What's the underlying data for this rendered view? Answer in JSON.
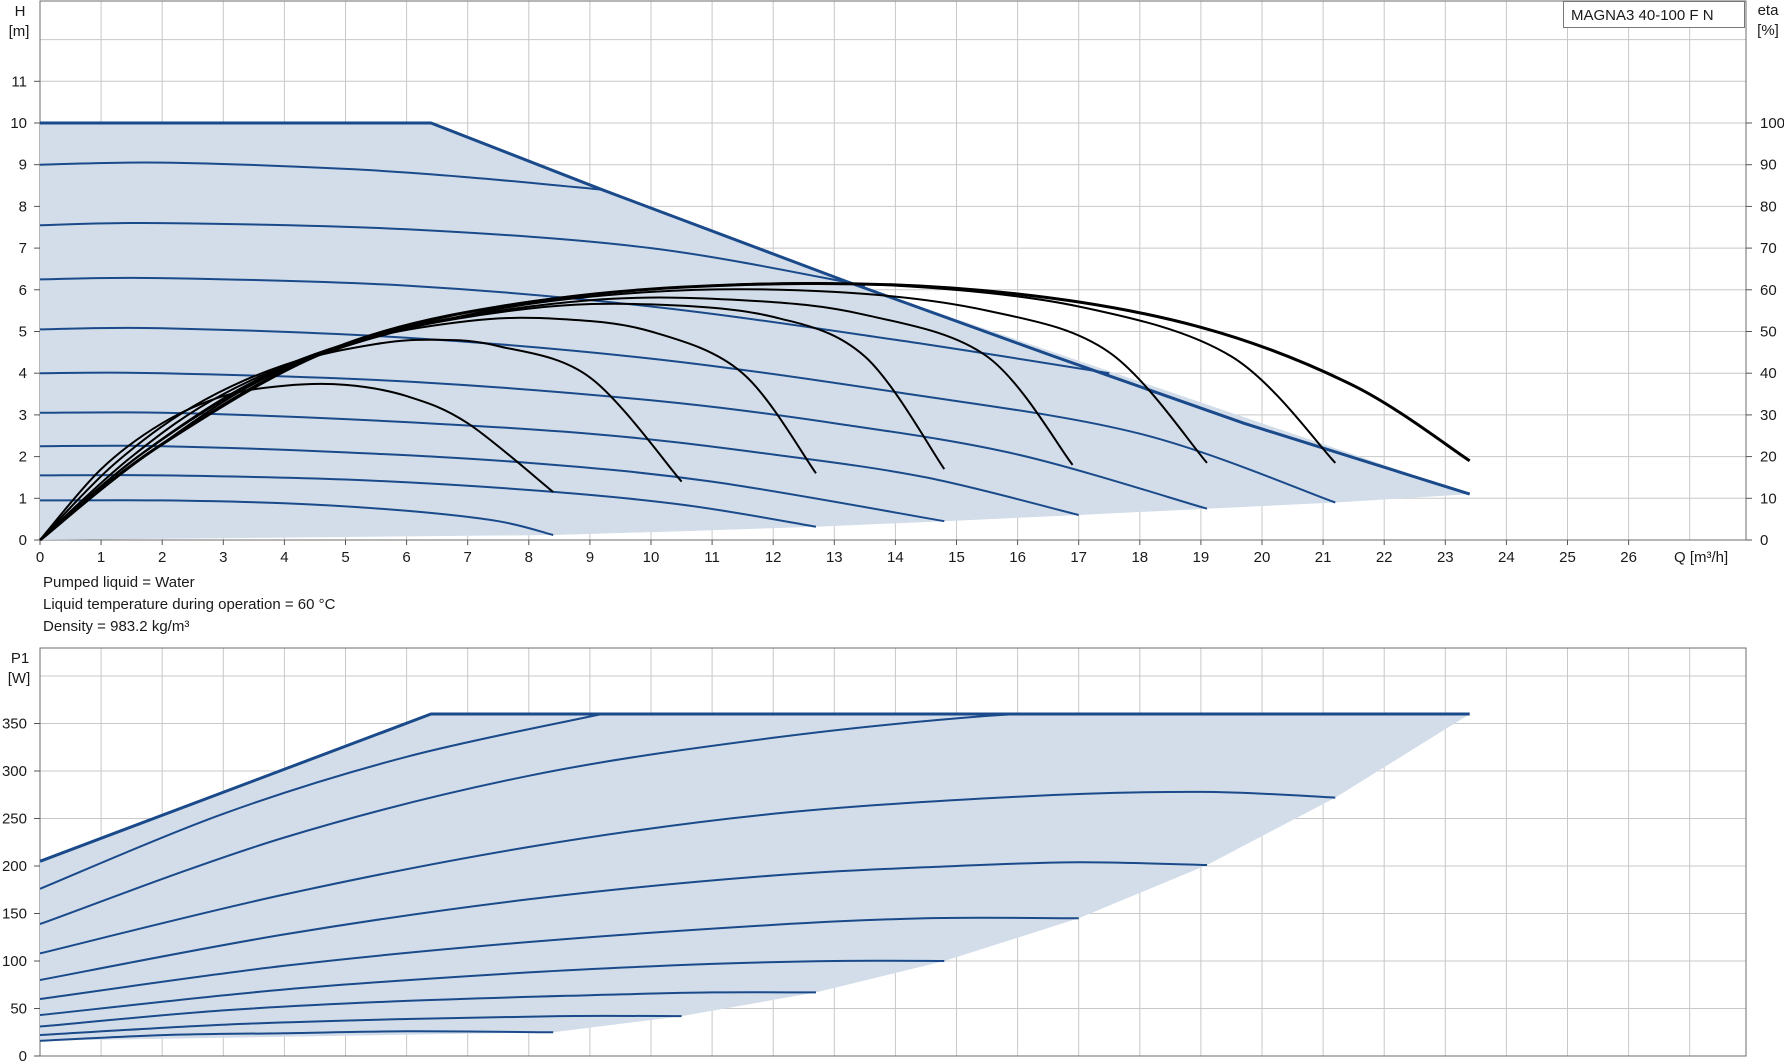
{
  "model": "MAGNA3 40-100 F N",
  "liquid_info": {
    "line1": "Pumped liquid = Water",
    "line2": "Liquid temperature during operation = 60 °C",
    "line3": "Density = 983.2 kg/m³"
  },
  "colors": {
    "curve": "#1a4a8a",
    "fill": "#d2dde9",
    "eta": "#000000"
  },
  "chart_data": [
    {
      "type": "line",
      "title": "",
      "xlabel": "Q [m³/h]",
      "ylabel_top": "H",
      "ylabel_bottom": "[m]",
      "y2label_top": "eta",
      "y2label_bottom": "[%]",
      "xlim": [
        0,
        28
      ],
      "ylim": [
        0,
        13
      ],
      "y2lim": [
        0,
        130
      ],
      "x_ticks": [
        0,
        1,
        2,
        3,
        4,
        5,
        6,
        7,
        8,
        9,
        10,
        11,
        12,
        13,
        14,
        15,
        16,
        17,
        18,
        19,
        20,
        21,
        22,
        23,
        24,
        25,
        26
      ],
      "y_ticks": [
        0,
        1,
        2,
        3,
        4,
        5,
        6,
        7,
        8,
        9,
        10,
        11
      ],
      "y2_ticks": [
        0,
        10,
        20,
        30,
        40,
        50,
        60,
        70,
        80,
        90,
        100
      ],
      "grid": true,
      "envelope": [
        [
          0,
          10
        ],
        [
          6.4,
          10
        ],
        [
          9.2,
          8.4
        ],
        [
          13.2,
          6.2
        ],
        [
          23.4,
          1.1
        ],
        [
          21.2,
          0.9
        ],
        [
          19.1,
          0.75
        ],
        [
          17,
          0.6
        ],
        [
          14.8,
          0.45
        ],
        [
          12.7,
          0.32
        ],
        [
          10.5,
          0.21
        ],
        [
          8.4,
          0.12
        ],
        [
          0,
          0
        ]
      ],
      "max_curve": [
        [
          0,
          10
        ],
        [
          6.4,
          10
        ],
        [
          9.2,
          8.4
        ],
        [
          13.2,
          6.2
        ],
        [
          16.6,
          4.4
        ],
        [
          19.7,
          2.8
        ],
        [
          23.4,
          1.1
        ]
      ],
      "series": [
        {
          "values": [
            [
              0,
              9
            ],
            [
              2,
              9.05
            ],
            [
              5,
              8.9
            ],
            [
              7,
              8.7
            ],
            [
              9.2,
              8.4
            ]
          ]
        },
        {
          "values": [
            [
              0,
              7.55
            ],
            [
              2,
              7.6
            ],
            [
              6,
              7.45
            ],
            [
              10,
              7
            ],
            [
              13.5,
              6.1
            ]
          ]
        },
        {
          "values": [
            [
              0,
              6.25
            ],
            [
              2,
              6.28
            ],
            [
              6,
              6.1
            ],
            [
              10,
              5.6
            ],
            [
              14,
              4.8
            ],
            [
              17.5,
              4
            ]
          ]
        },
        {
          "values": [
            [
              0,
              5.05
            ],
            [
              2,
              5.08
            ],
            [
              6,
              4.85
            ],
            [
              10,
              4.35
            ],
            [
              14,
              3.55
            ],
            [
              18,
              2.55
            ],
            [
              21.2,
              0.9
            ]
          ]
        },
        {
          "values": [
            [
              0,
              4.0
            ],
            [
              2,
              4.0
            ],
            [
              6,
              3.8
            ],
            [
              10,
              3.35
            ],
            [
              13,
              2.8
            ],
            [
              16,
              2.05
            ],
            [
              19.1,
              0.75
            ]
          ]
        },
        {
          "values": [
            [
              0,
              3.05
            ],
            [
              2,
              3.05
            ],
            [
              5,
              2.9
            ],
            [
              9,
              2.55
            ],
            [
              12,
              2.05
            ],
            [
              14.5,
              1.5
            ],
            [
              17,
              0.6
            ]
          ]
        },
        {
          "values": [
            [
              0,
              2.25
            ],
            [
              2,
              2.25
            ],
            [
              5,
              2.1
            ],
            [
              8,
              1.85
            ],
            [
              11,
              1.4
            ],
            [
              14.8,
              0.45
            ]
          ]
        },
        {
          "values": [
            [
              0,
              1.55
            ],
            [
              2,
              1.55
            ],
            [
              5,
              1.45
            ],
            [
              8,
              1.2
            ],
            [
              10.5,
              0.85
            ],
            [
              12.7,
              0.32
            ]
          ]
        },
        {
          "values": [
            [
              0,
              0.95
            ],
            [
              2,
              0.95
            ],
            [
              4,
              0.88
            ],
            [
              6,
              0.7
            ],
            [
              7.5,
              0.45
            ],
            [
              8.4,
              0.12
            ]
          ]
        }
      ],
      "eta_series": [
        {
          "values": [
            [
              0,
              0
            ],
            [
              1,
              17
            ],
            [
              2,
              28
            ],
            [
              3,
              34.5
            ],
            [
              4,
              37
            ],
            [
              5,
              37.2
            ],
            [
              6,
              34.5
            ],
            [
              7,
              28
            ],
            [
              8.4,
              11.5
            ]
          ]
        },
        {
          "values": [
            [
              0,
              0
            ],
            [
              1.2,
              18
            ],
            [
              2.5,
              32
            ],
            [
              4,
              42
            ],
            [
              5.5,
              47
            ],
            [
              6.5,
              48
            ],
            [
              7.5,
              46.5
            ],
            [
              9,
              39
            ],
            [
              10.5,
              14
            ]
          ]
        },
        {
          "values": [
            [
              0,
              0
            ],
            [
              1.5,
              20
            ],
            [
              3,
              35
            ],
            [
              5,
              47
            ],
            [
              7,
              52.5
            ],
            [
              8.5,
              53
            ],
            [
              10,
              50
            ],
            [
              11.5,
              40
            ],
            [
              12.7,
              16
            ]
          ]
        },
        {
          "values": [
            [
              0,
              0
            ],
            [
              1.6,
              20
            ],
            [
              3.5,
              38
            ],
            [
              5.5,
              49
            ],
            [
              8,
              55.5
            ],
            [
              10,
              56.5
            ],
            [
              12,
              53.5
            ],
            [
              13.5,
              44
            ],
            [
              14.8,
              17
            ]
          ]
        },
        {
          "values": [
            [
              0,
              0
            ],
            [
              1.7,
              21
            ],
            [
              3.8,
              40
            ],
            [
              6,
              51
            ],
            [
              9,
              57.5
            ],
            [
              11.5,
              57.5
            ],
            [
              13.5,
              54
            ],
            [
              15.5,
              44
            ],
            [
              16.9,
              18
            ]
          ]
        },
        {
          "values": [
            [
              0,
              0
            ],
            [
              1.8,
              21
            ],
            [
              4,
              41
            ],
            [
              7,
              54
            ],
            [
              10,
              59.5
            ],
            [
              13,
              59.5
            ],
            [
              15.5,
              55
            ],
            [
              17.5,
              45
            ],
            [
              19.1,
              18.5
            ]
          ]
        },
        {
          "values": [
            [
              0,
              0
            ],
            [
              2,
              23
            ],
            [
              4.5,
              44
            ],
            [
              7.5,
              56
            ],
            [
              11,
              61
            ],
            [
              14,
              61
            ],
            [
              17,
              56
            ],
            [
              19.5,
              44
            ],
            [
              21.2,
              18.5
            ]
          ]
        },
        {
          "values": [
            [
              0,
              0
            ],
            [
              2,
              23
            ],
            [
              5,
              47
            ],
            [
              8.5,
              58
            ],
            [
              12.5,
              61.5
            ],
            [
              16,
              59
            ],
            [
              19,
              51
            ],
            [
              21.5,
              37
            ],
            [
              23.4,
              19
            ]
          ]
        }
      ]
    },
    {
      "type": "line",
      "title": "",
      "xlabel": "",
      "ylabel_top": "P1",
      "ylabel_bottom": "[W]",
      "xlim": [
        0,
        28
      ],
      "ylim": [
        0,
        400
      ],
      "y_ticks": [
        0,
        50,
        100,
        150,
        200,
        250,
        300,
        350
      ],
      "grid": true,
      "envelope": [
        [
          0,
          205
        ],
        [
          6.4,
          360
        ],
        [
          23.4,
          360
        ],
        [
          21.2,
          272
        ],
        [
          19.1,
          201
        ],
        [
          17,
          145
        ],
        [
          14.8,
          100
        ],
        [
          12.7,
          67
        ],
        [
          10.5,
          42
        ],
        [
          8.4,
          25
        ],
        [
          0,
          16
        ]
      ],
      "max_curve": [
        [
          0,
          205
        ],
        [
          6.4,
          360
        ],
        [
          23.4,
          360
        ]
      ],
      "series": [
        {
          "values": [
            [
              0,
              176
            ],
            [
              3,
              255
            ],
            [
              6,
              315
            ],
            [
              9.2,
              360
            ]
          ]
        },
        {
          "values": [
            [
              0,
              139
            ],
            [
              4,
              230
            ],
            [
              8,
              295
            ],
            [
              12,
              335
            ],
            [
              15.5,
              358
            ],
            [
              17,
              360
            ]
          ]
        },
        {
          "values": [
            [
              0,
              108
            ],
            [
              4,
              170
            ],
            [
              8,
              220
            ],
            [
              12,
              255
            ],
            [
              16,
              273
            ],
            [
              19,
              278
            ],
            [
              21.2,
              272
            ]
          ]
        },
        {
          "values": [
            [
              0,
              80
            ],
            [
              4,
              128
            ],
            [
              8,
              165
            ],
            [
              12,
              190
            ],
            [
              15,
              200
            ],
            [
              17,
              204
            ],
            [
              19.1,
              201
            ]
          ]
        },
        {
          "values": [
            [
              0,
              60
            ],
            [
              4,
              95
            ],
            [
              8,
              120
            ],
            [
              12,
              138
            ],
            [
              14.5,
              145
            ],
            [
              17,
              145
            ]
          ]
        },
        {
          "values": [
            [
              0,
              43
            ],
            [
              4,
              70
            ],
            [
              8,
              88
            ],
            [
              11,
              97
            ],
            [
              13,
              100
            ],
            [
              14.8,
              100
            ]
          ]
        },
        {
          "values": [
            [
              0,
              31
            ],
            [
              3,
              48
            ],
            [
              6,
              58
            ],
            [
              9,
              64
            ],
            [
              11,
              67
            ],
            [
              12.7,
              67
            ]
          ]
        },
        {
          "values": [
            [
              0,
              22
            ],
            [
              3,
              33
            ],
            [
              6,
              39
            ],
            [
              8.5,
              42
            ],
            [
              10.5,
              42
            ]
          ]
        },
        {
          "values": [
            [
              0,
              16
            ],
            [
              2,
              22
            ],
            [
              4,
              24
            ],
            [
              6,
              26
            ],
            [
              8.4,
              25
            ]
          ]
        }
      ]
    }
  ]
}
